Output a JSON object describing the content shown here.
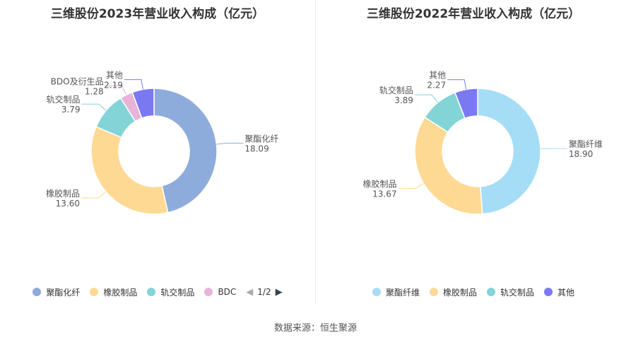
{
  "colors": {
    "left": [
      "#8eacdb",
      "#fed994",
      "#83d4d6",
      "#e7b4d8",
      "#7a79f2"
    ],
    "right": [
      "#a6ddf6",
      "#fed994",
      "#83d4d6",
      "#7a79f2"
    ]
  },
  "chart_data": [
    {
      "type": "pie",
      "donut": true,
      "title": "三维股份2023年营业收入构成（亿元）",
      "categories": [
        "聚酯化纤",
        "橡胶制品",
        "轨交制品",
        "BDO及衍生品",
        "其他"
      ],
      "values": [
        18.09,
        13.6,
        3.79,
        1.28,
        2.19
      ],
      "value_labels": [
        "18.09",
        "13.60",
        "3.79",
        "1.28",
        "2.19"
      ],
      "legend": {
        "placement": "bottom",
        "items": [
          "聚酯化纤",
          "橡胶制品",
          "轨交制品",
          "BDC"
        ],
        "page": "1/2"
      }
    },
    {
      "type": "pie",
      "donut": true,
      "title": "三维股份2022年营业收入构成（亿元）",
      "categories": [
        "聚酯纤维",
        "橡胶制品",
        "轨交制品",
        "其他"
      ],
      "values": [
        18.9,
        13.67,
        3.89,
        2.27
      ],
      "value_labels": [
        "18.90",
        "13.67",
        "3.89",
        "2.27"
      ],
      "legend": {
        "placement": "bottom",
        "items": [
          "聚酯纤维",
          "橡胶制品",
          "轨交制品",
          "其他"
        ]
      }
    }
  ],
  "source": "数据来源：恒生聚源"
}
